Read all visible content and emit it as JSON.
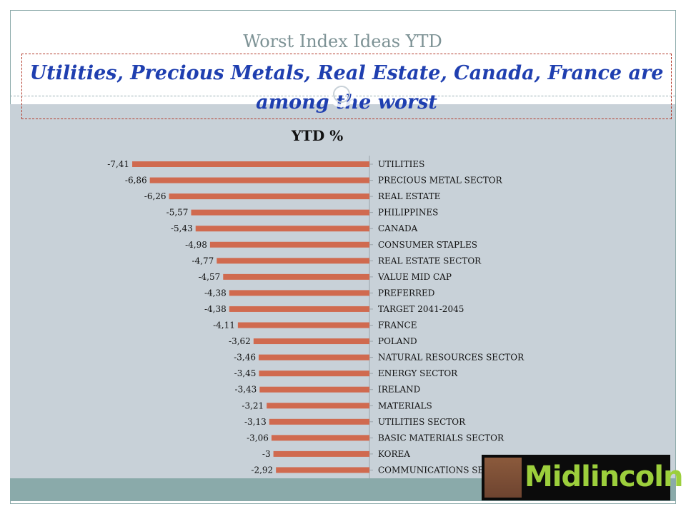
{
  "slide": {
    "title": "Worst Index Ideas YTD",
    "headline": "Utilities, Precious Metals, Real Estate, Canada, France are among the worst"
  },
  "logo": {
    "text": "Midlincoln"
  },
  "colors": {
    "bar": "#d06a4f",
    "chart_background": "#c8d1d8",
    "headline": "#1f3fb0"
  },
  "chart_data": {
    "type": "bar",
    "orientation": "horizontal",
    "title": "YTD %",
    "categories": [
      "UTILITIES",
      "PRECIOUS METAL SECTOR",
      "REAL ESTATE",
      "PHILIPPINES",
      "CANADA",
      "CONSUMER STAPLES",
      "REAL ESTATE SECTOR",
      "VALUE MID CAP",
      "PREFERRED",
      "TARGET 2041-2045",
      "FRANCE",
      "POLAND",
      "NATURAL RESOURCES SECTOR",
      "ENERGY SECTOR",
      "IRELAND",
      "MATERIALS",
      "UTILITIES SECTOR",
      "BASIC MATERIALS SECTOR",
      "KOREA",
      "COMMUNICATIONS SECTOR"
    ],
    "values": [
      -7.41,
      -6.86,
      -6.26,
      -5.57,
      -5.43,
      -4.98,
      -4.77,
      -4.57,
      -4.38,
      -4.38,
      -4.11,
      -3.62,
      -3.46,
      -3.45,
      -3.43,
      -3.21,
      -3.13,
      -3.06,
      -3,
      -2.92
    ],
    "value_labels": [
      "-7,41",
      "-6,86",
      "-6,26",
      "-5,57",
      "-5,43",
      "-4,98",
      "-4,77",
      "-4,57",
      "-4,38",
      "-4,38",
      "-4,11",
      "-3,62",
      "-3,46",
      "-3,45",
      "-3,43",
      "-3,21",
      "-3,13",
      "-3,06",
      "-3",
      "-2,92"
    ],
    "category_labels_side": "right",
    "grid": false,
    "legend": "none"
  }
}
